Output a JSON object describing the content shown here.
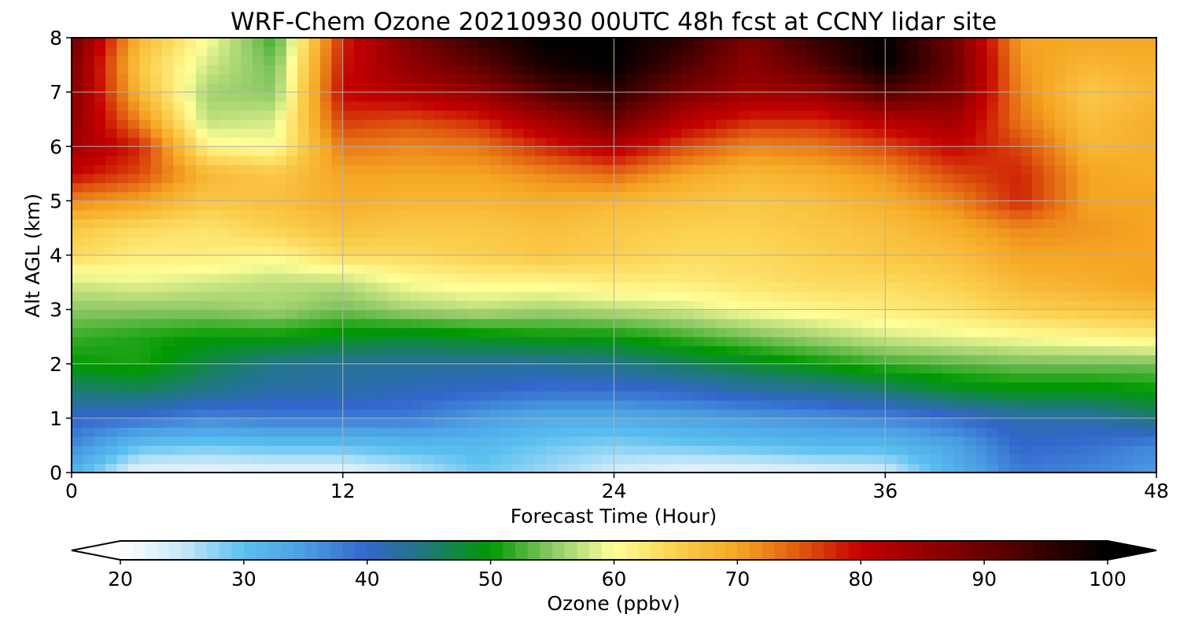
{
  "chart_data": {
    "type": "heatmap",
    "title": "WRF-Chem Ozone  20210930 00UTC 48h fcst at CCNY lidar site",
    "xlabel": "Forecast Time (Hour)",
    "ylabel": "Alt AGL (km)",
    "xlim": [
      0,
      48
    ],
    "ylim": [
      0,
      8
    ],
    "xticks": [
      "0",
      "12",
      "24",
      "36",
      "48"
    ],
    "yticks": [
      "0",
      "1",
      "2",
      "3",
      "4",
      "5",
      "6",
      "7",
      "8"
    ],
    "grid": true,
    "x": [
      0,
      3,
      6,
      9,
      12,
      15,
      18,
      21,
      24,
      27,
      30,
      33,
      36,
      39,
      42,
      45,
      48
    ],
    "y": [
      0,
      0.5,
      1,
      1.5,
      2,
      2.5,
      3,
      3.5,
      4,
      4.5,
      5,
      5.5,
      6,
      6.5,
      7,
      7.5,
      8
    ],
    "z_rows_by_altitude": [
      [
        32,
        22,
        22,
        22,
        22,
        25,
        29,
        27,
        24,
        22,
        22,
        23,
        24,
        32,
        38,
        37,
        35
      ],
      [
        37,
        30,
        29,
        30,
        30,
        31,
        31,
        29,
        28,
        29,
        30,
        31,
        31,
        34,
        40,
        39,
        37
      ],
      [
        40,
        39,
        37,
        38,
        38,
        38,
        35,
        33,
        33,
        34,
        35,
        36,
        37,
        39,
        42,
        42,
        45
      ],
      [
        45,
        46,
        44,
        42,
        42,
        41,
        40,
        39,
        39,
        40,
        42,
        43,
        45,
        48,
        49,
        49,
        50
      ],
      [
        50,
        51,
        47,
        44,
        43,
        43,
        43,
        43,
        44,
        46,
        48,
        50,
        52,
        53,
        54,
        54,
        54
      ],
      [
        52,
        51,
        50,
        50,
        49,
        48,
        49,
        50,
        50,
        52,
        54,
        56,
        58,
        59,
        60,
        61,
        62
      ],
      [
        55,
        55,
        55,
        56,
        54,
        56,
        57,
        56,
        57,
        58,
        60,
        61,
        62,
        63,
        65,
        66,
        67
      ],
      [
        58,
        59,
        58,
        57,
        57,
        60,
        61,
        61,
        62,
        62,
        63,
        64,
        64,
        65,
        68,
        69,
        70
      ],
      [
        64,
        62,
        62,
        61,
        64,
        64,
        65,
        66,
        65,
        64,
        64,
        65,
        66,
        67,
        70,
        70,
        70
      ],
      [
        66,
        64,
        63,
        65,
        67,
        66,
        66,
        67,
        66,
        65,
        65,
        66,
        67,
        69,
        72,
        71,
        70
      ],
      [
        72,
        70,
        66,
        67,
        69,
        68,
        68,
        69,
        68,
        67,
        66,
        67,
        69,
        72,
        78,
        70,
        70
      ],
      [
        80,
        76,
        68,
        66,
        70,
        70,
        70,
        72,
        74,
        70,
        68,
        69,
        71,
        76,
        78,
        70,
        69
      ],
      [
        84,
        78,
        61,
        60,
        73,
        72,
        73,
        78,
        82,
        76,
        72,
        73,
        76,
        80,
        76,
        68,
        69
      ],
      [
        86,
        72,
        57,
        58,
        77,
        76,
        78,
        84,
        90,
        82,
        78,
        78,
        82,
        84,
        73,
        67,
        69
      ],
      [
        87,
        68,
        56,
        55,
        80,
        82,
        85,
        92,
        96,
        88,
        84,
        85,
        92,
        88,
        72,
        66,
        68
      ],
      [
        88,
        66,
        58,
        54,
        79,
        86,
        91,
        98,
        100,
        93,
        86,
        92,
        100,
        90,
        71,
        68,
        69
      ],
      [
        90,
        68,
        60,
        52,
        78,
        88,
        95,
        100,
        100,
        96,
        88,
        95,
        100,
        89,
        70,
        70,
        70
      ]
    ],
    "colorbar": {
      "label": "Ozone  (ppbv)",
      "min": 20,
      "max": 100,
      "ticks": [
        "20",
        "30",
        "40",
        "50",
        "60",
        "70",
        "80",
        "90",
        "100"
      ],
      "extend": "both",
      "stops": [
        {
          "v": 20,
          "c": "#ffffff"
        },
        {
          "v": 25,
          "c": "#c8e8f8"
        },
        {
          "v": 30,
          "c": "#5bc0f0"
        },
        {
          "v": 35,
          "c": "#4a9ee3"
        },
        {
          "v": 40,
          "c": "#3366cc"
        },
        {
          "v": 45,
          "c": "#1d7a78"
        },
        {
          "v": 50,
          "c": "#009900"
        },
        {
          "v": 55,
          "c": "#8dc966"
        },
        {
          "v": 60,
          "c": "#ffff99"
        },
        {
          "v": 65,
          "c": "#fbd04f"
        },
        {
          "v": 70,
          "c": "#f5a623"
        },
        {
          "v": 75,
          "c": "#e05a10"
        },
        {
          "v": 80,
          "c": "#c40000"
        },
        {
          "v": 90,
          "c": "#6a0000"
        },
        {
          "v": 100,
          "c": "#000000"
        }
      ]
    }
  }
}
